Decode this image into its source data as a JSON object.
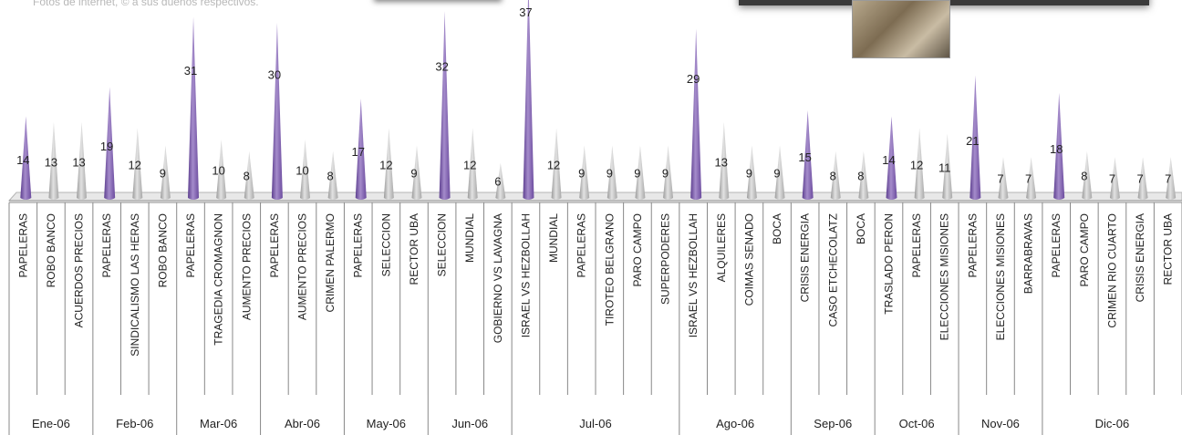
{
  "credit_text": "Fotos de internet, © a sus dueños respectivos.",
  "colors": {
    "highlight": "#8a6fb3",
    "normal": "#c4c4c4",
    "axis": "#888888",
    "text": "#222222"
  },
  "chart_data": {
    "type": "bar",
    "title": "",
    "xlabel": "",
    "ylabel": "",
    "ylim": [
      0,
      37
    ],
    "grid": false,
    "legend": "none",
    "categories": [
      "PAPELERAS",
      "ROBO BANCO",
      "ACUERDOS PRECIOS",
      "PAPELERAS",
      "SINDICALISMO LAS HERAS",
      "ROBO BANCO",
      "PAPELERAS",
      "TRAGEDIA CROMAGNON",
      "AUMENTO PRECIOS",
      "PAPELERAS",
      "AUMENTO PRECIOS",
      "CRIMEN PALERMO",
      "PAPELERAS",
      "SELECCION",
      "RECTOR UBA",
      "SELECCION",
      "MUNDIAL",
      "GOBIERNO VS LAVAGNA",
      "ISRAEL VS HEZBOLLAH",
      "MUNDIAL",
      "PAPELERAS",
      "TIROTEO BELGRANO",
      "PARO CAMPO",
      "SUPERPODERES",
      "ISRAEL VS HEZBOLLAH",
      "ALQUILERES",
      "COIMAS SENADO",
      "BOCA",
      "CRISIS ENERGIA",
      "CASO ETCHECOLATZ",
      "BOCA",
      "TRASLADO PERON",
      "PAPELERAS",
      "ELECCIONES MISIONES",
      "PAPELERAS",
      "ELECCIONES MISIONES",
      "BARRABRAVAS",
      "PAPELERAS",
      "PARO CAMPO",
      "CRIMEN RIO CUARTO",
      "CRISIS ENERGIA",
      "RECTOR UBA"
    ],
    "values": [
      14,
      13,
      13,
      19,
      12,
      9,
      31,
      10,
      8,
      30,
      10,
      8,
      17,
      12,
      9,
      32,
      12,
      6,
      37,
      12,
      9,
      9,
      9,
      9,
      29,
      13,
      9,
      9,
      15,
      8,
      8,
      14,
      12,
      11,
      21,
      7,
      7,
      18,
      8,
      7,
      7,
      7
    ],
    "highlighted": [
      true,
      false,
      false,
      true,
      false,
      false,
      true,
      false,
      false,
      true,
      false,
      false,
      true,
      false,
      false,
      true,
      false,
      false,
      true,
      false,
      false,
      false,
      false,
      false,
      true,
      false,
      false,
      false,
      true,
      false,
      false,
      true,
      false,
      false,
      true,
      false,
      false,
      true,
      false,
      false,
      false,
      false
    ],
    "groups": [
      {
        "label": "Ene-06",
        "count": 3
      },
      {
        "label": "Feb-06",
        "count": 3
      },
      {
        "label": "Mar-06",
        "count": 3
      },
      {
        "label": "Abr-06",
        "count": 3
      },
      {
        "label": "May-06",
        "count": 3
      },
      {
        "label": "Jun-06",
        "count": 3
      },
      {
        "label": "Jul-06",
        "count": 6
      },
      {
        "label": "Ago-06",
        "count": 4
      },
      {
        "label": "Sep-06",
        "count": 3
      },
      {
        "label": "Oct-06",
        "count": 3
      },
      {
        "label": "Nov-06",
        "count": 3
      },
      {
        "label": "Dic-06",
        "count": 5
      }
    ]
  }
}
